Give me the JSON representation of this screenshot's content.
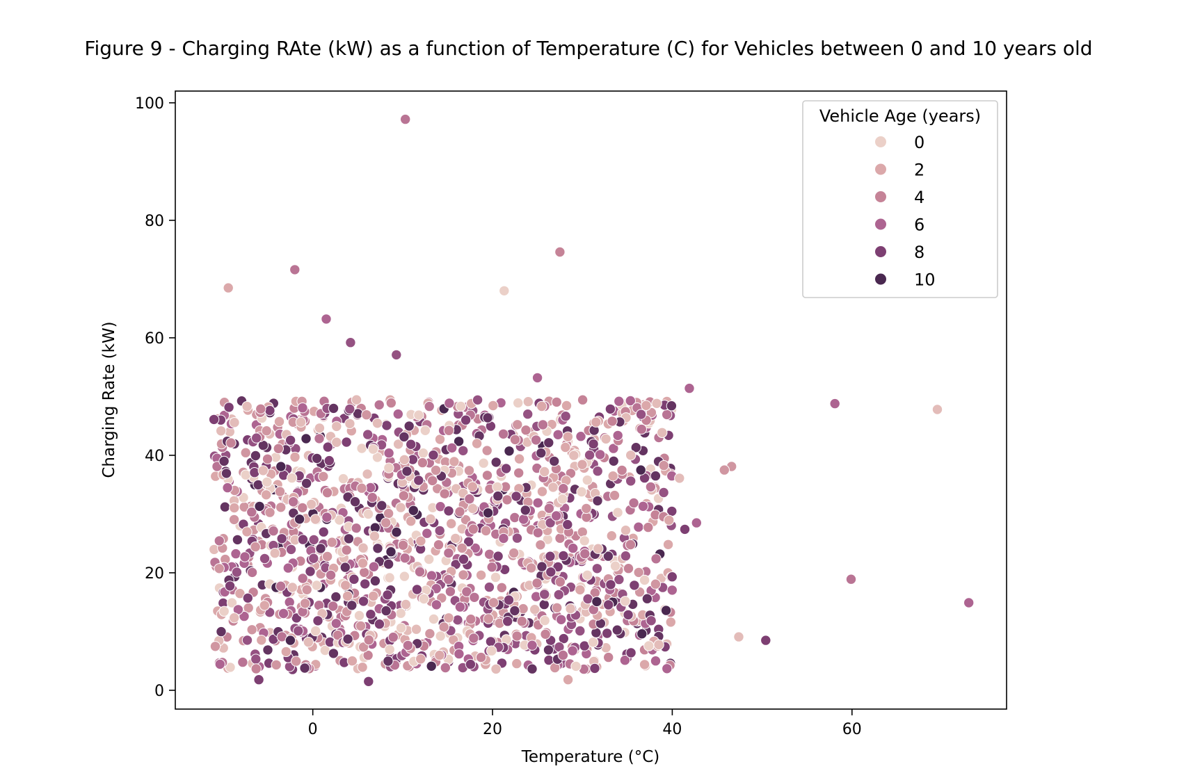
{
  "chart_data": {
    "type": "scatter",
    "title": "Figure 9 - Charging RAte (kW) as a function of Temperature (C) for Vehicles between 0 and 10 years old",
    "xlabel": "Temperature (°C)",
    "ylabel": "Charging Rate (kW)",
    "xlim": [
      -15.3,
      77.2
    ],
    "ylim": [
      -3.2,
      102.0
    ],
    "x_ticks": [
      0,
      20,
      40,
      60
    ],
    "y_ticks": [
      0,
      20,
      40,
      60,
      80,
      100
    ],
    "grid": false,
    "legend": {
      "title": "Vehicle Age (years)",
      "placement": "top-right",
      "entries": [
        {
          "label": "0",
          "color": "#ebd0c8"
        },
        {
          "label": "2",
          "color": "#dba8aa"
        },
        {
          "label": "4",
          "color": "#c58397"
        },
        {
          "label": "6",
          "color": "#ad6491"
        },
        {
          "label": "8",
          "color": "#7d3f72"
        },
        {
          "label": "10",
          "color": "#4a2850"
        }
      ]
    },
    "hue": "vehicle_age_years",
    "hue_range": [
      0,
      10
    ],
    "bulk_region": {
      "description": "dense cloud of ~1500 points",
      "x_range": [
        -11,
        40
      ],
      "y_range": [
        1.5,
        50.5
      ],
      "approx_count": 1500
    },
    "points": [
      {
        "x": 10.3,
        "y": 97.2,
        "age": 5
      },
      {
        "x": 27.5,
        "y": 74.6,
        "age": 4
      },
      {
        "x": -2.0,
        "y": 71.6,
        "age": 5
      },
      {
        "x": -9.4,
        "y": 68.5,
        "age": 2
      },
      {
        "x": 21.3,
        "y": 68.0,
        "age": 0
      },
      {
        "x": 1.5,
        "y": 63.2,
        "age": 6
      },
      {
        "x": 4.2,
        "y": 59.2,
        "age": 7
      },
      {
        "x": 9.3,
        "y": 57.1,
        "age": 7
      },
      {
        "x": 25.0,
        "y": 53.2,
        "age": 6
      },
      {
        "x": 41.9,
        "y": 51.4,
        "age": 6
      },
      {
        "x": 58.1,
        "y": 48.8,
        "age": 6
      },
      {
        "x": 69.5,
        "y": 47.8,
        "age": 1
      },
      {
        "x": 46.6,
        "y": 38.1,
        "age": 3
      },
      {
        "x": 45.8,
        "y": 37.5,
        "age": 3
      },
      {
        "x": 40.8,
        "y": 36.1,
        "age": 1
      },
      {
        "x": 42.7,
        "y": 28.5,
        "age": 6
      },
      {
        "x": 41.4,
        "y": 27.4,
        "age": 8
      },
      {
        "x": 59.9,
        "y": 18.9,
        "age": 5
      },
      {
        "x": 73.0,
        "y": 14.9,
        "age": 6
      },
      {
        "x": 47.4,
        "y": 9.1,
        "age": 1
      },
      {
        "x": 50.4,
        "y": 8.5,
        "age": 8
      },
      {
        "x": -11.0,
        "y": 46.1,
        "age": 8
      },
      {
        "x": -6.0,
        "y": 1.8,
        "age": 8
      },
      {
        "x": 6.2,
        "y": 1.5,
        "age": 8
      },
      {
        "x": 28.4,
        "y": 1.8,
        "age": 2
      },
      {
        "x": 13.2,
        "y": 4.1,
        "age": 10
      },
      {
        "x": 31.6,
        "y": 15.1,
        "age": 10
      },
      {
        "x": -2.5,
        "y": 8.5,
        "age": 10
      },
      {
        "x": 36.5,
        "y": 37.5,
        "age": 10
      },
      {
        "x": 19.5,
        "y": 30.2,
        "age": 10
      }
    ]
  }
}
